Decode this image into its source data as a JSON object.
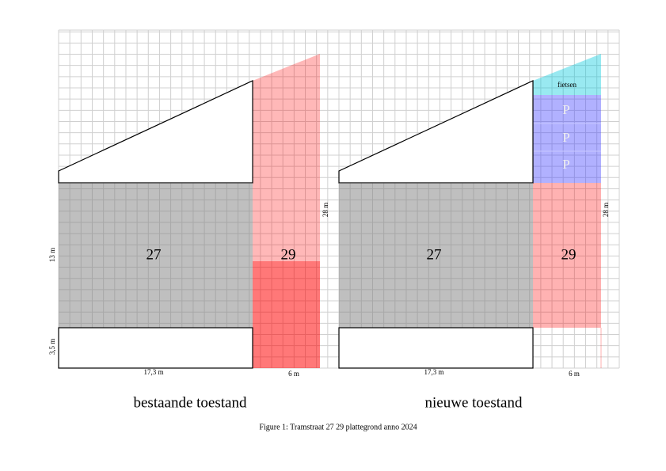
{
  "panels": [
    {
      "caption": "bestaande toestand",
      "unit_left": "27",
      "unit_right": "29",
      "depth_main": "13 m",
      "depth_front": "3,5 m",
      "width_left": "17,3 m",
      "width_right": "6 m",
      "depth_total": "28 m"
    },
    {
      "caption": "nieuwe toestand",
      "unit_left": "27",
      "unit_right": "29",
      "width_left": "17,3 m",
      "width_right": "6 m",
      "depth_total": "28 m",
      "bikes": "fietsen",
      "parking": [
        "P",
        "P",
        "P"
      ]
    }
  ],
  "figure_caption": "Figure 1: Tramstraat 27 29 plattegrond anno 2024"
}
